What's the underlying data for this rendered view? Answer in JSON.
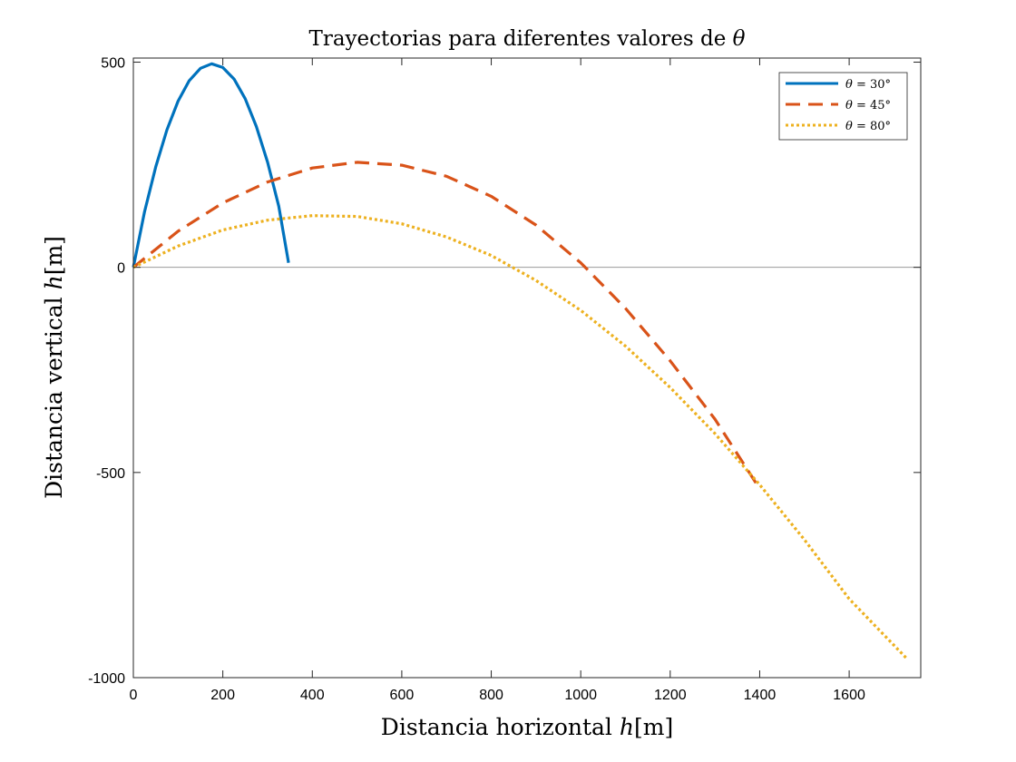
{
  "chart_data": {
    "type": "line",
    "title": "Trayectorias para diferentes valores de θ",
    "title_text": "Trayectorias para diferentes valores de ",
    "title_symbol": "θ",
    "xlabel": "Distancia horizontal h[m]",
    "xlabel_text": "Distancia horizontal ",
    "xlabel_math_var": "h",
    "xlabel_math_unit": "[m]",
    "ylabel": "Distancia vertical h[m]",
    "ylabel_text": "Distancia vertical ",
    "ylabel_math_var": "h",
    "ylabel_math_unit": "[m]",
    "xlim": [
      0,
      1760
    ],
    "ylim": [
      -1000,
      510
    ],
    "xticks": [
      0,
      200,
      400,
      600,
      800,
      1000,
      1200,
      1400,
      1600
    ],
    "xtick_labels": [
      "0",
      "200",
      "400",
      "600",
      "800",
      "1000",
      "1200",
      "1400",
      "1600"
    ],
    "yticks": [
      -1000,
      -500,
      0,
      500
    ],
    "ytick_labels": [
      "-1000",
      "-500",
      "0",
      "500"
    ],
    "zero_line": true,
    "grid": false,
    "legend_position": "top-right",
    "series": [
      {
        "name": "θ = 30°",
        "legend_var": "θ",
        "legend_rest": " = 30°",
        "color": "#0072BD",
        "style": "solid",
        "points": [
          [
            0,
            0
          ],
          [
            25,
            135
          ],
          [
            50,
            245
          ],
          [
            75,
            335
          ],
          [
            100,
            405
          ],
          [
            125,
            455
          ],
          [
            150,
            485
          ],
          [
            175,
            496
          ],
          [
            200,
            487
          ],
          [
            225,
            459
          ],
          [
            250,
            411
          ],
          [
            275,
            343
          ],
          [
            300,
            256
          ],
          [
            325,
            149
          ],
          [
            347,
            11
          ]
        ]
      },
      {
        "name": "θ = 45°",
        "legend_var": "θ",
        "legend_rest": " = 45°",
        "color": "#D95319",
        "style": "dashed",
        "points": [
          [
            0,
            0
          ],
          [
            100,
            88
          ],
          [
            200,
            157
          ],
          [
            300,
            208
          ],
          [
            400,
            242
          ],
          [
            500,
            256
          ],
          [
            600,
            249
          ],
          [
            700,
            222
          ],
          [
            800,
            173
          ],
          [
            900,
            103
          ],
          [
            1000,
            11
          ],
          [
            1100,
            -100
          ],
          [
            1200,
            -228
          ],
          [
            1300,
            -370
          ],
          [
            1400,
            -540
          ]
        ]
      },
      {
        "name": "θ = 80°",
        "legend_var": "θ",
        "legend_rest": " = 80°",
        "color": "#EDB120",
        "style": "dotted",
        "points": [
          [
            0,
            0
          ],
          [
            100,
            52
          ],
          [
            200,
            91
          ],
          [
            300,
            115
          ],
          [
            400,
            126
          ],
          [
            500,
            124
          ],
          [
            600,
            106
          ],
          [
            700,
            74
          ],
          [
            800,
            29
          ],
          [
            900,
            -32
          ],
          [
            1000,
            -105
          ],
          [
            1100,
            -192
          ],
          [
            1200,
            -293
          ],
          [
            1300,
            -405
          ],
          [
            1400,
            -530
          ],
          [
            1500,
            -664
          ],
          [
            1600,
            -808
          ],
          [
            1730,
            -955
          ]
        ]
      }
    ]
  }
}
